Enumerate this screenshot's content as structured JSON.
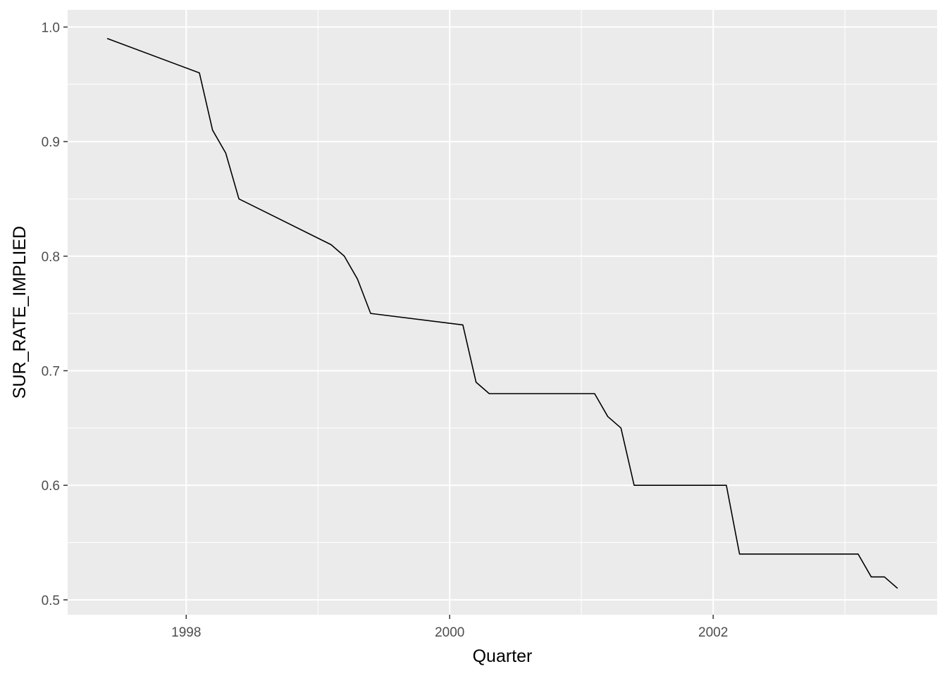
{
  "chart_data": {
    "type": "line",
    "xlabel": "Quarter",
    "ylabel": "SUR_RATE_IMPLIED",
    "xlim": [
      1997.1,
      2003.7
    ],
    "ylim": [
      0.487,
      1.015
    ],
    "x_ticks": [
      1998,
      2000,
      2002
    ],
    "x_tick_labels": [
      "1998",
      "2000",
      "2002"
    ],
    "y_ticks": [
      0.5,
      0.6,
      0.7,
      0.8,
      0.9,
      1.0
    ],
    "y_tick_labels": [
      "0.5",
      "0.6",
      "0.7",
      "0.8",
      "0.9",
      "1.0"
    ],
    "grid": true,
    "background": "#ebebeb",
    "grid_color": "#ffffff",
    "line_color": "#000000",
    "series": [
      {
        "x": [
          1997.4,
          1998.1,
          1998.2,
          1998.3,
          1998.4,
          1999.1,
          1999.2,
          1999.3,
          1999.4,
          2000.1,
          2000.2,
          2000.3,
          2000.4,
          2001.1,
          2001.2,
          2001.3,
          2001.4,
          2002.1,
          2002.2,
          2002.3,
          2002.4,
          2003.1,
          2003.2,
          2003.3,
          2003.4
        ],
        "y": [
          0.99,
          0.96,
          0.91,
          0.89,
          0.85,
          0.81,
          0.8,
          0.78,
          0.75,
          0.74,
          0.69,
          0.68,
          0.68,
          0.68,
          0.66,
          0.65,
          0.6,
          0.6,
          0.54,
          0.54,
          0.54,
          0.54,
          0.52,
          0.52,
          0.51
        ]
      }
    ]
  }
}
